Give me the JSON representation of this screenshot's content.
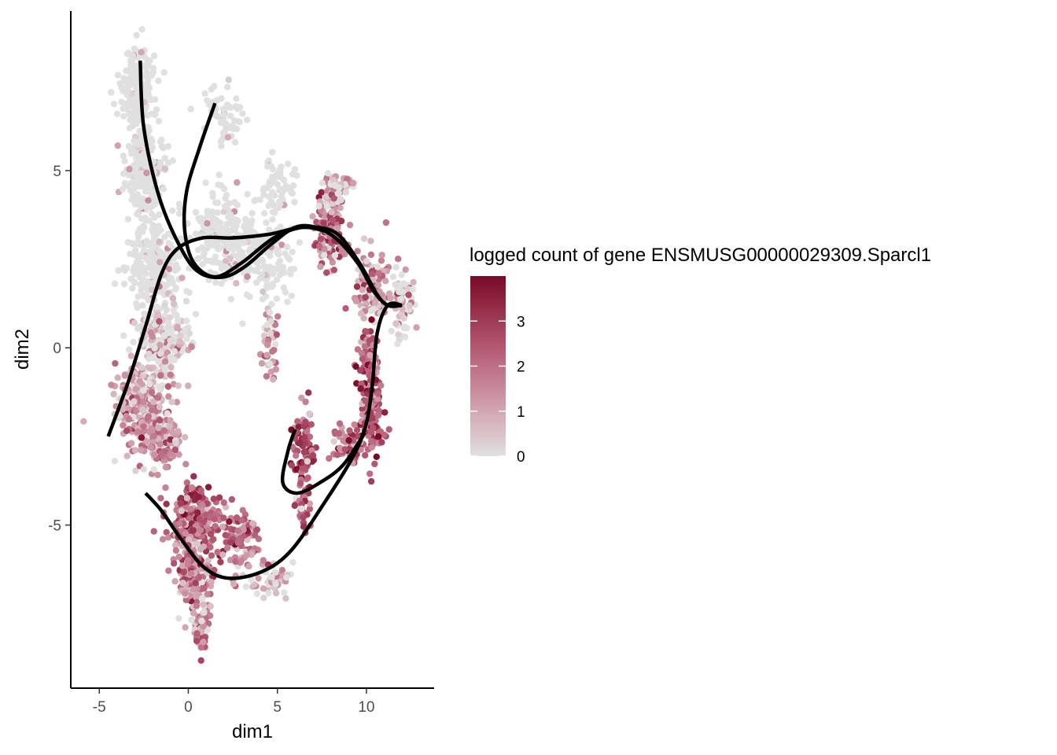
{
  "chart_data": {
    "type": "scatter",
    "xlabel": "dim1",
    "ylabel": "dim2",
    "xlim": [
      -6.6,
      13.8
    ],
    "ylim": [
      -9.6,
      9.5
    ],
    "x_ticks": [
      -5,
      0,
      5,
      10
    ],
    "y_ticks": [
      -5,
      0,
      5
    ],
    "x_tick_labels": [
      "-5",
      "0",
      "5",
      "10"
    ],
    "y_tick_labels": [
      "-5",
      "0",
      "5"
    ],
    "grid": false,
    "legend": {
      "title": "logged count of gene ENSMUSG00000029309.Sparcl1",
      "placement": "right",
      "type": "colorbar",
      "range": [
        0,
        4
      ],
      "breaks": [
        0,
        1,
        2,
        3
      ],
      "labels": [
        "0",
        "1",
        "2",
        "3"
      ],
      "low_color": "#e0e0e0",
      "high_color": "#7a0a26"
    },
    "point_clusters": [
      {
        "center": [
          -2.9,
          7.3
        ],
        "spread": [
          0.8,
          1.0
        ],
        "n": 200,
        "expr": 0.05
      },
      {
        "center": [
          -2.5,
          5.0
        ],
        "spread": [
          0.9,
          1.1
        ],
        "n": 240,
        "expr": 0.05
      },
      {
        "center": [
          -1.9,
          2.5
        ],
        "spread": [
          1.2,
          0.9
        ],
        "n": 240,
        "expr": 0.1
      },
      {
        "center": [
          -1.4,
          0.3
        ],
        "spread": [
          1.3,
          1.0
        ],
        "n": 240,
        "expr": 0.2
      },
      {
        "center": [
          -2.9,
          -1.6
        ],
        "spread": [
          1.2,
          0.9
        ],
        "n": 230,
        "expr": 0.9
      },
      {
        "center": [
          -1.6,
          -2.6
        ],
        "spread": [
          1.0,
          0.7
        ],
        "n": 160,
        "expr": 1.4
      },
      {
        "center": [
          0.4,
          -4.8
        ],
        "spread": [
          1.2,
          0.7
        ],
        "n": 210,
        "expr": 2.4
      },
      {
        "center": [
          0.3,
          -6.3
        ],
        "spread": [
          0.9,
          0.8
        ],
        "n": 180,
        "expr": 1.6
      },
      {
        "center": [
          0.8,
          -7.7
        ],
        "spread": [
          0.4,
          0.6
        ],
        "n": 70,
        "expr": 1.2
      },
      {
        "center": [
          3.0,
          -5.4
        ],
        "spread": [
          1.0,
          0.8
        ],
        "n": 90,
        "expr": 1.8
      },
      {
        "center": [
          4.6,
          -6.6
        ],
        "spread": [
          1.1,
          0.4
        ],
        "n": 50,
        "expr": 0.4
      },
      {
        "center": [
          2.0,
          6.5
        ],
        "spread": [
          0.9,
          0.8
        ],
        "n": 60,
        "expr": 0.1
      },
      {
        "center": [
          2.0,
          3.2
        ],
        "spread": [
          1.5,
          1.0
        ],
        "n": 170,
        "expr": 0.08
      },
      {
        "center": [
          4.2,
          2.6
        ],
        "spread": [
          1.5,
          1.1
        ],
        "n": 150,
        "expr": 0.08
      },
      {
        "center": [
          5.0,
          4.6
        ],
        "spread": [
          0.9,
          0.6
        ],
        "n": 60,
        "expr": 0.05
      },
      {
        "center": [
          4.6,
          0.2
        ],
        "spread": [
          0.4,
          0.9
        ],
        "n": 45,
        "expr": 1.0
      },
      {
        "center": [
          7.9,
          3.4
        ],
        "spread": [
          0.7,
          0.9
        ],
        "n": 130,
        "expr": 2.0
      },
      {
        "center": [
          8.4,
          4.5
        ],
        "spread": [
          0.7,
          0.4
        ],
        "n": 50,
        "expr": 0.5
      },
      {
        "center": [
          10.3,
          1.8
        ],
        "spread": [
          0.9,
          0.8
        ],
        "n": 110,
        "expr": 1.3
      },
      {
        "center": [
          12.0,
          1.3
        ],
        "spread": [
          0.5,
          0.7
        ],
        "n": 80,
        "expr": 0.35
      },
      {
        "center": [
          10.1,
          -0.2
        ],
        "spread": [
          0.5,
          0.9
        ],
        "n": 80,
        "expr": 2.3
      },
      {
        "center": [
          10.3,
          -2.0
        ],
        "spread": [
          0.5,
          1.0
        ],
        "n": 110,
        "expr": 2.4
      },
      {
        "center": [
          9.0,
          -2.7
        ],
        "spread": [
          0.7,
          0.5
        ],
        "n": 60,
        "expr": 2.0
      },
      {
        "center": [
          6.5,
          -2.8
        ],
        "spread": [
          0.5,
          0.9
        ],
        "n": 80,
        "expr": 2.6
      },
      {
        "center": [
          6.4,
          -4.5
        ],
        "spread": [
          0.4,
          0.5
        ],
        "n": 30,
        "expr": 2.1
      }
    ],
    "trajectories": [
      {
        "points": [
          [
            -2.7,
            8.1
          ],
          [
            -2.5,
            6.2
          ],
          [
            -1.6,
            4.2
          ],
          [
            -0.3,
            2.7
          ],
          [
            0.7,
            2.1
          ],
          [
            2.0,
            2.0
          ],
          [
            3.2,
            2.3
          ],
          [
            4.6,
            2.9
          ],
          [
            6.0,
            3.4
          ],
          [
            7.2,
            3.4
          ],
          [
            8.4,
            3.2
          ],
          [
            9.6,
            2.4
          ],
          [
            10.6,
            1.5
          ],
          [
            11.2,
            1.2
          ],
          [
            12.0,
            1.2
          ]
        ]
      },
      {
        "points": [
          [
            1.5,
            6.9
          ],
          [
            0.6,
            5.6
          ],
          [
            -0.1,
            4.4
          ],
          [
            -0.2,
            3.3
          ],
          [
            0.3,
            2.4
          ],
          [
            1.5,
            2.0
          ],
          [
            3.0,
            2.4
          ],
          [
            4.8,
            3.1
          ],
          [
            6.4,
            3.4
          ],
          [
            7.6,
            3.3
          ]
        ]
      },
      {
        "points": [
          [
            -4.5,
            -2.5
          ],
          [
            -3.4,
            -1.0
          ],
          [
            -2.4,
            0.6
          ],
          [
            -1.5,
            2.1
          ],
          [
            -0.6,
            2.8
          ],
          [
            0.8,
            3.1
          ],
          [
            2.5,
            3.1
          ],
          [
            4.5,
            3.2
          ],
          [
            6.5,
            3.4
          ],
          [
            8.0,
            3.2
          ],
          [
            9.5,
            2.4
          ],
          [
            10.4,
            1.6
          ],
          [
            11.2,
            1.2
          ],
          [
            12.0,
            1.2
          ]
        ]
      },
      {
        "points": [
          [
            12.0,
            1.2
          ],
          [
            11.2,
            1.2
          ],
          [
            10.6,
            0.4
          ],
          [
            10.3,
            -1.2
          ],
          [
            9.9,
            -2.3
          ],
          [
            9.1,
            -3.2
          ],
          [
            7.6,
            -4.4
          ],
          [
            5.8,
            -5.7
          ],
          [
            4.2,
            -6.3
          ],
          [
            2.3,
            -6.5
          ],
          [
            0.9,
            -6.2
          ],
          [
            -0.4,
            -5.4
          ],
          [
            -1.5,
            -4.6
          ],
          [
            -2.4,
            -4.1
          ]
        ]
      },
      {
        "points": [
          [
            9.9,
            -2.4
          ],
          [
            8.7,
            -3.3
          ],
          [
            7.4,
            -3.8
          ],
          [
            6.1,
            -4.1
          ],
          [
            5.3,
            -3.8
          ],
          [
            5.6,
            -2.9
          ],
          [
            6.0,
            -2.3
          ]
        ]
      }
    ]
  }
}
